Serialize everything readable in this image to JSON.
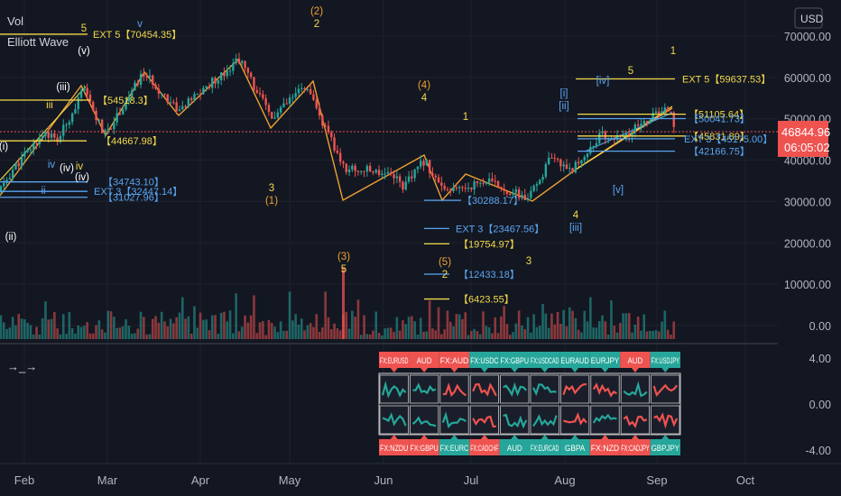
{
  "legend": {
    "volume": "Vol",
    "indicator": "Elliott Wave"
  },
  "currency_button": "USD",
  "price_tag": {
    "value": "46844.96",
    "countdown": "06:05:02"
  },
  "pane2_tool": "→_→",
  "colors": {
    "background": "#131722",
    "up": "#26a69a",
    "down": "#ef5350",
    "wave_line": "#f0a030",
    "fib_yellow": "#f3d94a",
    "fib_blue": "#5aa5f0",
    "text": "#d1d4dc",
    "axis_text": "#b2b5be",
    "grid": "#1e222d"
  },
  "chart_data": [
    {
      "type": "candlestick",
      "title": "",
      "y_axis": {
        "ticks": [
          "70000.00",
          "60000.00",
          "50000.00",
          "40000.00",
          "30000.00",
          "20000.00",
          "10000.00",
          "0.00"
        ]
      },
      "x_axis": {
        "ticks": [
          "Feb",
          "Mar",
          "Apr",
          "May",
          "Jun",
          "Jul",
          "Aug",
          "Sep",
          "Oct"
        ]
      },
      "price_path": {
        "dates": [
          "Jan 22",
          "Jan 28",
          "Feb 08",
          "Feb 12",
          "Feb 21",
          "Feb 28",
          "Mar 13",
          "Mar 25",
          "Apr 14",
          "Apr 25",
          "May 06",
          "May 19",
          "May 27",
          "Jun 04",
          "Jun 08",
          "Jun 15",
          "Jun 22",
          "Jul 06",
          "Jul 20",
          "Jul 27",
          "Aug 04",
          "Aug 13",
          "Aug 20",
          "Aug 30",
          "Sep 06",
          "Sep 07"
        ],
        "values": [
          32000,
          38000,
          47000,
          44500,
          57000,
          46000,
          61000,
          52000,
          64500,
          50000,
          58000,
          38000,
          37500,
          37000,
          33500,
          40000,
          32000,
          35000,
          30500,
          40000,
          38000,
          46000,
          45000,
          50500,
          52500,
          46844.96
        ]
      },
      "wave_labels": [
        {
          "text": "(i)",
          "color": "white"
        },
        {
          "text": "(ii)",
          "color": "white"
        },
        {
          "text": "(iii)",
          "color": "white"
        },
        {
          "text": "(iv)",
          "color": "white"
        },
        {
          "text": "(v)",
          "color": "white"
        },
        {
          "text": "iii",
          "color": "yellow"
        },
        {
          "text": "ii",
          "color": "blue"
        },
        {
          "text": "iv",
          "color": "blue"
        },
        {
          "text": "v",
          "color": "blue"
        },
        {
          "text": "iv",
          "color": "yellow"
        },
        {
          "text": "5",
          "color": "yellow"
        },
        {
          "text": "(2)",
          "color": "orange"
        },
        {
          "text": "2",
          "color": "yellow"
        },
        {
          "text": "(4)",
          "color": "orange"
        },
        {
          "text": "4",
          "color": "yellow"
        },
        {
          "text": "1",
          "color": "yellow"
        },
        {
          "text": "(1)",
          "color": "orange"
        },
        {
          "text": "3",
          "color": "yellow"
        },
        {
          "text": "(3)",
          "color": "orange"
        },
        {
          "text": "5",
          "color": "yellow"
        },
        {
          "text": "(5)",
          "color": "orange"
        },
        {
          "text": "2",
          "color": "yellow"
        },
        {
          "text": "3",
          "color": "yellow"
        },
        {
          "text": "[i]",
          "color": "blue"
        },
        {
          "text": "[ii]",
          "color": "blue"
        },
        {
          "text": "4",
          "color": "yellow"
        },
        {
          "text": "[iii]",
          "color": "blue"
        },
        {
          "text": "[iv]",
          "color": "blue"
        },
        {
          "text": "[v]",
          "color": "blue"
        },
        {
          "text": "5",
          "color": "yellow"
        },
        {
          "text": "1",
          "color": "yellow"
        },
        {
          "text": "(iv)",
          "color": "white"
        }
      ],
      "fib_levels": [
        {
          "text": "EXT 5【70454.35】",
          "color": "yellow",
          "price": 70454.35
        },
        {
          "text": "【54518.3】",
          "color": "yellow",
          "price": 54518.3
        },
        {
          "text": "【44667.98】",
          "color": "yellow",
          "price": 44667.98
        },
        {
          "text": "【34743.10】",
          "color": "blue",
          "price": 34743.1
        },
        {
          "text": "EXT 3【32447.14】",
          "color": "blue",
          "price": 32447.14
        },
        {
          "text": "【31027.96】",
          "color": "blue",
          "price": 31027.96
        },
        {
          "text": "【30288.17】",
          "color": "blue",
          "price": 30288.17
        },
        {
          "text": "EXT 3【23467.56】",
          "color": "blue",
          "price": 23467.56
        },
        {
          "text": "【19754.97】",
          "color": "yellow",
          "price": 19754.97
        },
        {
          "text": "【12433.18】",
          "color": "blue",
          "price": 12433.18
        },
        {
          "text": "【6423.55】",
          "color": "yellow",
          "price": 6423.55
        },
        {
          "text": "EXT 5【59637.53】",
          "color": "yellow",
          "price": 59637.53
        },
        {
          "text": "【51105.64】",
          "color": "yellow",
          "price": 51105.64
        },
        {
          "text": "【50041.73】",
          "color": "blue",
          "price": 50041.73
        },
        {
          "text": "【45831.89】",
          "color": "yellow",
          "price": 45831.89
        },
        {
          "text": "EXT 3【45175.00】",
          "color": "blue",
          "price": 45175.0
        },
        {
          "text": "【42166.75】",
          "color": "blue",
          "price": 42166.75
        }
      ]
    },
    {
      "type": "bar",
      "title": "",
      "series": [
        {
          "name": "Vol"
        }
      ],
      "max_label": "3",
      "values_note": ""
    },
    {
      "type": "heatmap",
      "title": "",
      "y_axis": {
        "ticks": [
          "4.00",
          "0.00",
          "-4.00"
        ]
      },
      "top_symbols": [
        {
          "text": "FX:EURUSD",
          "color": "red"
        },
        {
          "text": "AUD",
          "color": "red"
        },
        {
          "text": "FX:AUD",
          "color": "red"
        },
        {
          "text": "FX:USDC",
          "color": "green"
        },
        {
          "text": "FX:GBPU",
          "color": "green"
        },
        {
          "text": "FX:USDCAD",
          "color": "green"
        },
        {
          "text": "EURAUD",
          "color": "green"
        },
        {
          "text": "EURJPY",
          "color": "green"
        },
        {
          "text": "AUD",
          "color": "red"
        },
        {
          "text": "FX:USDJPY",
          "color": "green"
        }
      ],
      "bottom_symbols": [
        {
          "text": "FX:NZDU",
          "color": "red"
        },
        {
          "text": "FX:GBPU",
          "color": "red"
        },
        {
          "text": "FX:EURC",
          "color": "green"
        },
        {
          "text": "FX:CADCHF",
          "color": "red"
        },
        {
          "text": "AUD",
          "color": "green"
        },
        {
          "text": "FX:EURCAD",
          "color": "green"
        },
        {
          "text": "GBPA",
          "color": "green"
        },
        {
          "text": "FX:NZD",
          "color": "red"
        },
        {
          "text": "FX:CADJPY",
          "color": "red"
        },
        {
          "text": "GBPJPY",
          "color": "green"
        }
      ]
    }
  ]
}
